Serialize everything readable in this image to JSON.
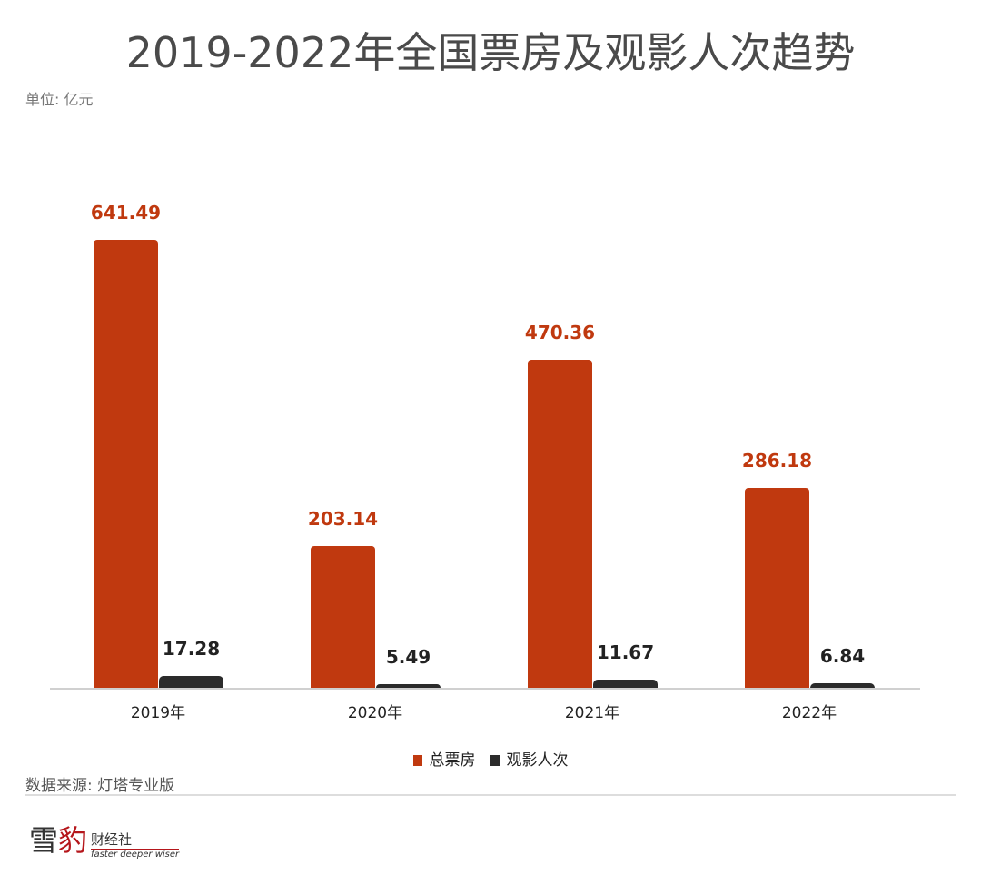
{
  "chart_data": {
    "type": "bar",
    "title": "2019-2022年全国票房及观影人次趋势",
    "unit_label": "单位: 亿元",
    "categories": [
      "2019年",
      "2020年",
      "2021年",
      "2022年"
    ],
    "series": [
      {
        "name": "总票房",
        "color": "#c0390f",
        "values": [
          641.49,
          203.14,
          470.36,
          286.18
        ]
      },
      {
        "name": "观影人次",
        "color": "#2b2b2b",
        "values": [
          17.28,
          5.49,
          11.67,
          6.84
        ]
      }
    ],
    "value_labels": [
      [
        "641.49",
        "203.14",
        "470.36",
        "286.18"
      ],
      [
        "17.28",
        "5.49",
        "11.67",
        "6.84"
      ]
    ],
    "ylim": [
      0,
      641.49
    ],
    "legend_position": "bottom-center",
    "grid": false
  },
  "source": "数据来源: 灯塔专业版",
  "logo": {
    "char1": "雪",
    "char2": "豹",
    "name": "财经社",
    "slogan": "faster deeper wiser"
  }
}
